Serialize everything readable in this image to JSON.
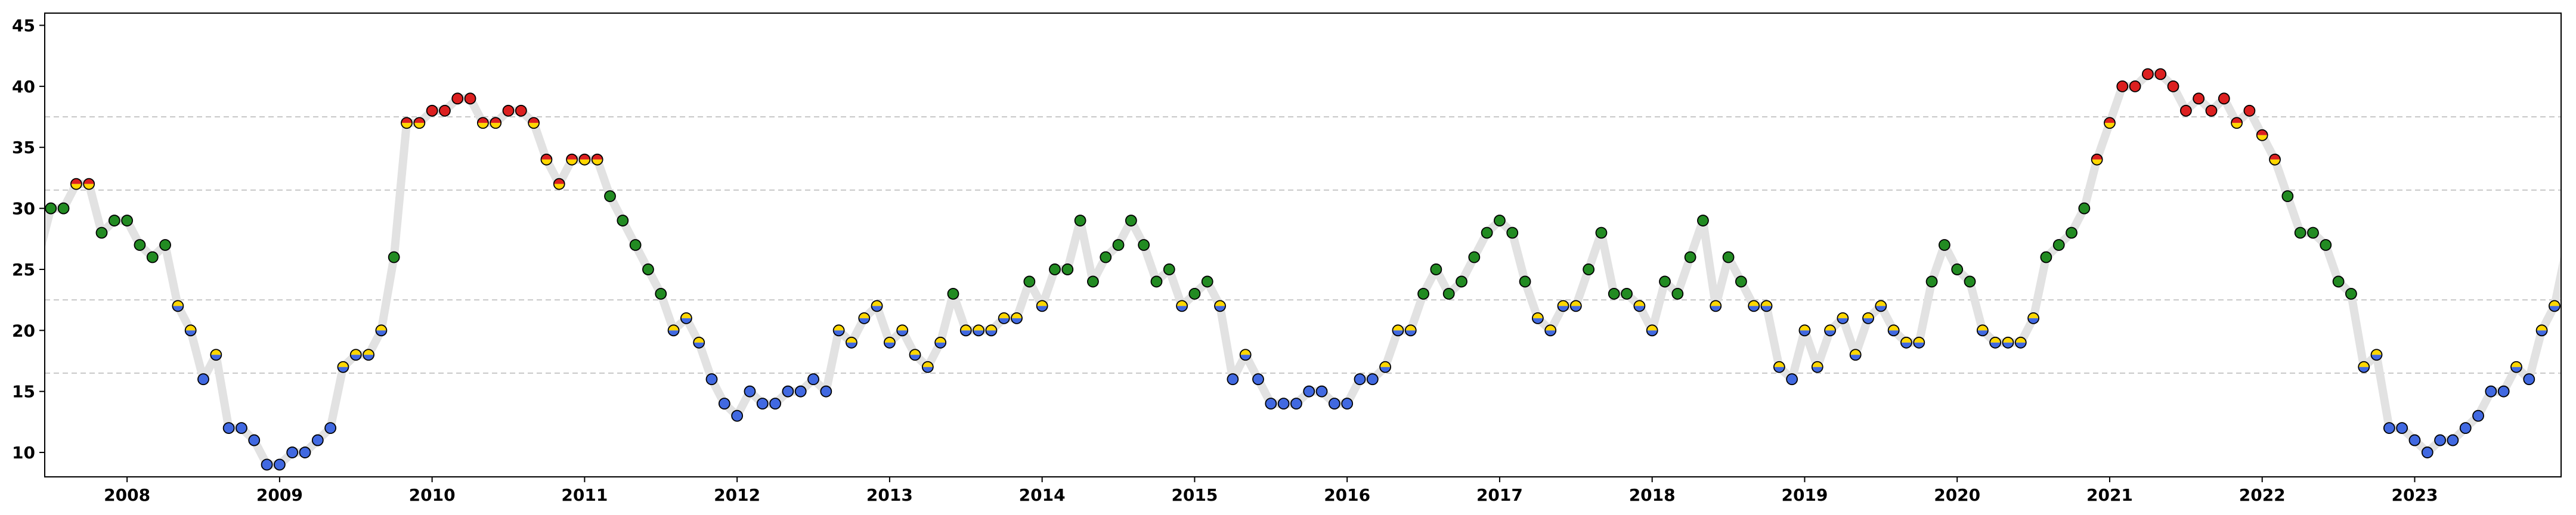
{
  "chart_data": {
    "type": "line",
    "title": "",
    "xlabel": "",
    "ylabel": "",
    "xlim": [
      2007.46,
      2023.96
    ],
    "ylim": [
      8,
      46
    ],
    "grid": "horizontal dashed at 16.5, 22.5, 31.5, 37.5",
    "x_ticks": [
      "2008",
      "2009",
      "2010",
      "2011",
      "2012",
      "2013",
      "2014",
      "2015",
      "2016",
      "2017",
      "2018",
      "2019",
      "2020",
      "2021",
      "2022",
      "2023"
    ],
    "y_ticks": [
      "10",
      "15",
      "20",
      "25",
      "30",
      "35",
      "40",
      "45"
    ],
    "band_thresholds": [
      16.5,
      22.5,
      31.5,
      37.5
    ],
    "colors": {
      "line": "#e2e2e2",
      "low": "#4169e1",
      "mid_low_half": "#ffd700",
      "mid_high_half": "#228b22",
      "high": "#dc2020",
      "grid": "#c8c8c8",
      "marker_edge": "#000000"
    },
    "series": [
      {
        "start": "2007-07",
        "frequency": "monthly",
        "values": [
          30,
          30,
          32,
          32,
          28,
          29,
          29,
          27,
          26,
          27,
          22,
          20,
          16,
          18,
          12,
          12,
          11,
          9,
          9,
          10,
          10,
          11,
          12,
          17,
          18,
          18,
          20,
          26,
          37,
          37,
          38,
          38,
          39,
          39,
          37,
          37,
          38,
          38,
          37,
          34,
          32,
          34,
          34,
          34,
          31,
          29,
          27,
          25,
          23,
          20,
          21,
          19,
          16,
          14,
          13,
          15,
          14,
          14,
          15,
          15,
          16,
          15,
          20,
          19,
          21,
          22,
          19,
          20,
          18,
          17,
          19,
          23,
          20,
          20,
          20,
          21,
          21,
          24,
          22,
          25,
          25,
          29,
          24,
          26,
          27,
          29,
          27,
          24,
          25,
          22,
          23,
          24,
          22,
          16,
          18,
          16,
          14,
          14,
          14,
          15,
          15,
          14,
          14,
          16,
          16,
          17,
          20,
          20,
          23,
          25,
          23,
          24,
          26,
          28,
          29,
          28,
          24,
          21,
          20,
          22,
          22,
          25,
          28,
          23,
          23,
          22,
          20,
          24,
          23,
          26,
          29,
          22,
          26,
          24,
          22,
          22,
          17,
          16,
          20,
          17,
          20,
          21,
          18,
          21,
          22,
          20,
          19,
          19,
          24,
          27,
          25,
          24,
          20,
          19,
          19,
          19,
          21,
          26,
          27,
          28,
          30,
          34,
          37,
          40,
          40,
          41,
          41,
          40,
          38,
          39,
          38,
          39,
          37,
          38,
          36,
          34,
          31,
          28,
          28,
          27,
          24,
          23,
          17,
          18,
          12,
          12,
          11,
          10,
          11,
          11,
          12,
          13,
          15,
          15,
          17,
          16,
          20,
          22,
          27
        ]
      }
    ]
  }
}
